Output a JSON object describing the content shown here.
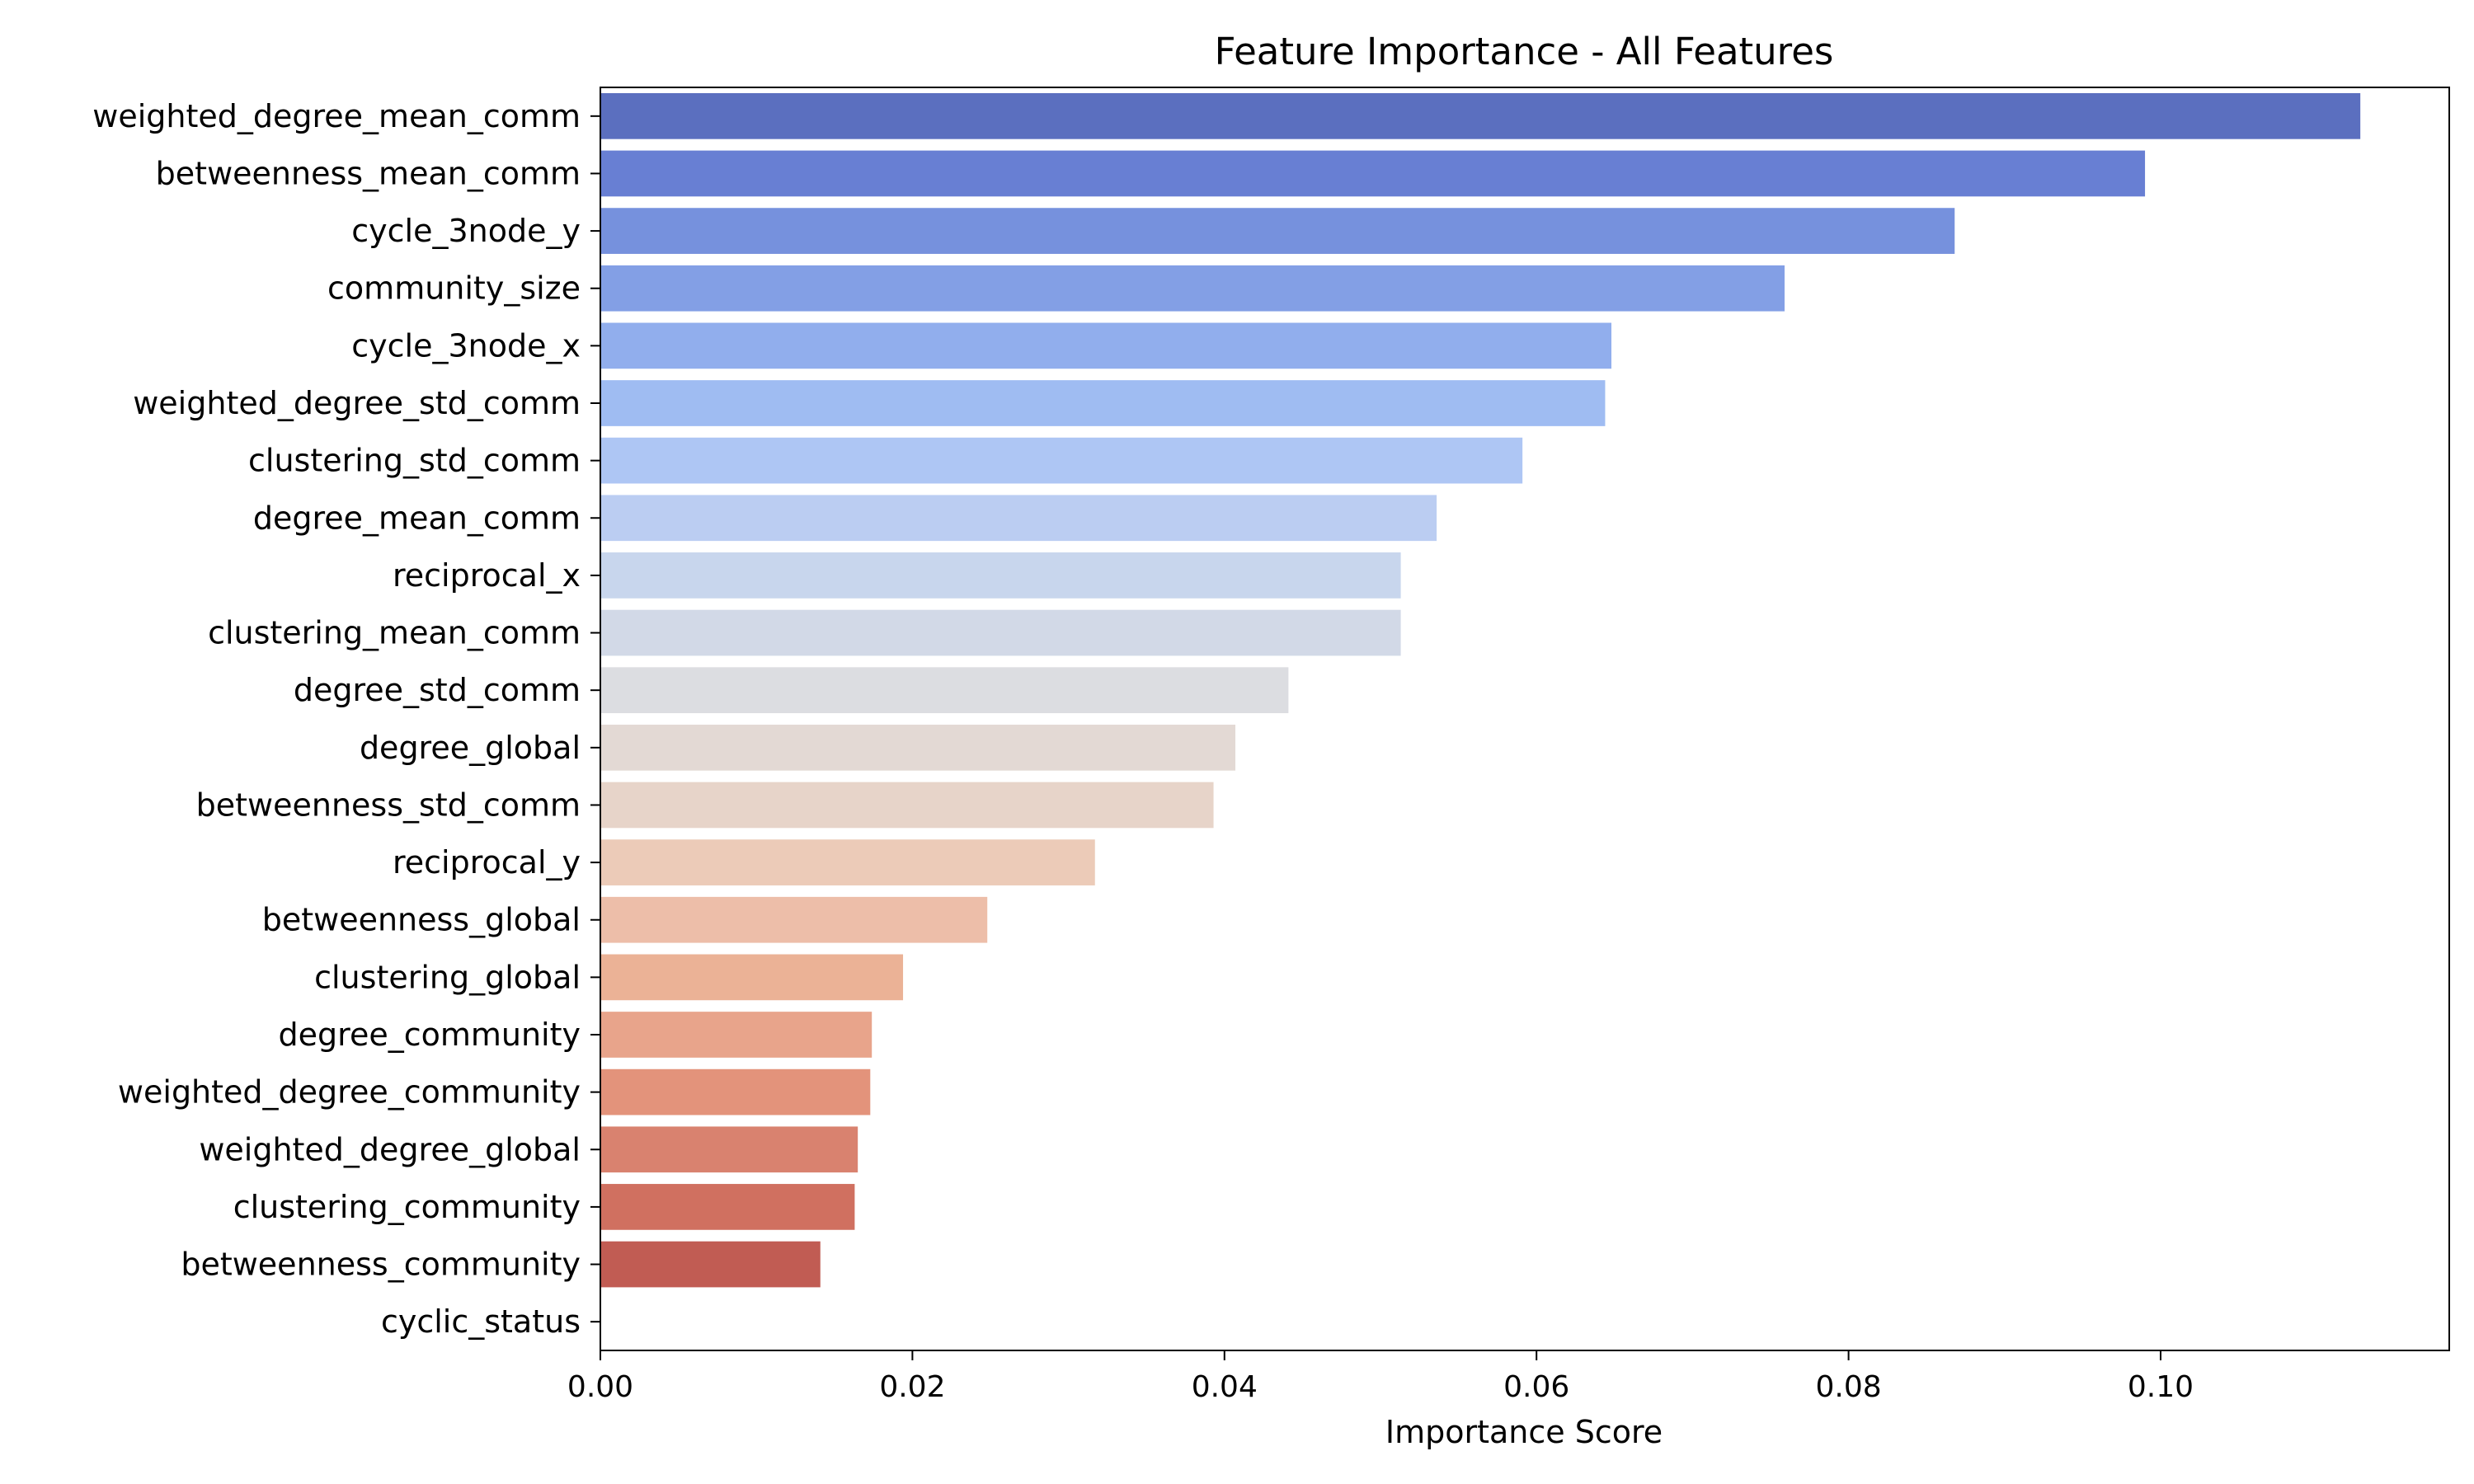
{
  "chart_data": {
    "type": "bar",
    "orientation": "horizontal",
    "title": "Feature Importance - All Features",
    "xlabel": "Importance Score",
    "ylabel": "",
    "xlim": [
      0,
      0.1185
    ],
    "xticks": [
      "0.00",
      "0.02",
      "0.04",
      "0.06",
      "0.08",
      "0.10"
    ],
    "grid": false,
    "legend": "none",
    "colormap": "coolwarm",
    "categories": [
      "weighted_degree_mean_comm",
      "betweenness_mean_comm",
      "cycle_3node_y",
      "community_size",
      "cycle_3node_x",
      "weighted_degree_std_comm",
      "clustering_std_comm",
      "degree_mean_comm",
      "reciprocal_x",
      "clustering_mean_comm",
      "degree_std_comm",
      "degree_global",
      "betweenness_std_comm",
      "reciprocal_y",
      "betweenness_global",
      "clustering_global",
      "degree_community",
      "weighted_degree_community",
      "weighted_degree_global",
      "clustering_community",
      "betweenness_community",
      "cyclic_status"
    ],
    "values": [
      0.1128,
      0.099,
      0.0868,
      0.0759,
      0.0648,
      0.0644,
      0.0591,
      0.0536,
      0.0513,
      0.0513,
      0.0441,
      0.0407,
      0.0393,
      0.0317,
      0.0248,
      0.0194,
      0.0174,
      0.0173,
      0.0165,
      0.0163,
      0.0141,
      0.0
    ],
    "colors": [
      "#5b6fbf",
      "#687fd3",
      "#7691dd",
      "#839fe5",
      "#91aeed",
      "#9fbcf2",
      "#aec6f4",
      "#bbcdf2",
      "#c8d6ed",
      "#d2d9e7",
      "#dcdde1",
      "#e3d9d4",
      "#e7d4c9",
      "#eccbb8",
      "#edbea9",
      "#ebb296",
      "#e8a48b",
      "#e3937b",
      "#d9826f",
      "#d07060",
      "#c15c53",
      "#b34a4a"
    ]
  }
}
